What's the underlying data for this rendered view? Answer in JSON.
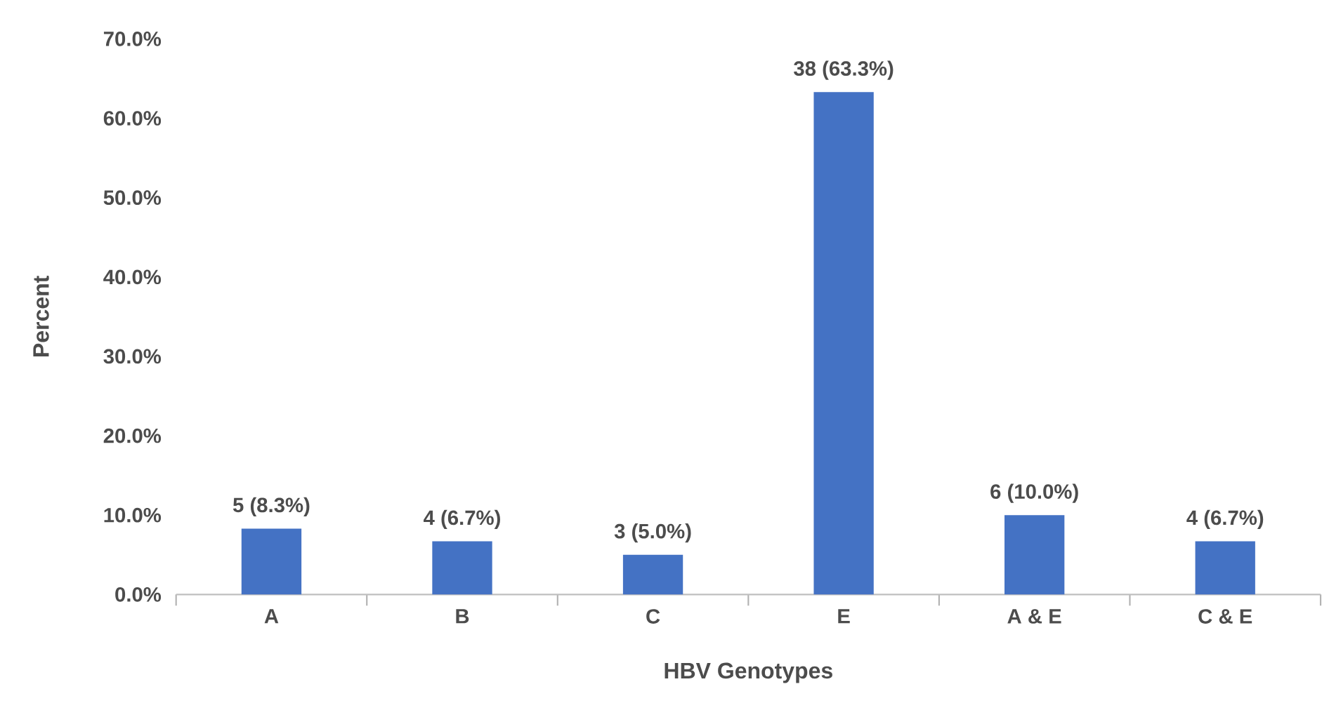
{
  "chart_data": {
    "type": "bar",
    "xlabel": "HBV Genotypes",
    "ylabel": "Percent",
    "categories": [
      "A",
      "B",
      "C",
      "E",
      "A & E",
      "C & E"
    ],
    "values": [
      8.3,
      6.7,
      5.0,
      63.3,
      10.0,
      6.7
    ],
    "value_labels": [
      "5 (8.3%)",
      "4 (6.7%)",
      "3 (5.0%)",
      "38 (63.3%)",
      "6 (10.0%)",
      "4 (6.7%)"
    ],
    "color": "#4472c4",
    "ylim": [
      0,
      70
    ],
    "yticks": [
      {
        "value": 0,
        "label": "0.0%"
      },
      {
        "value": 10,
        "label": "10.0%"
      },
      {
        "value": 20,
        "label": "20.0%"
      },
      {
        "value": 30,
        "label": "30.0%"
      },
      {
        "value": 40,
        "label": "40.0%"
      },
      {
        "value": 50,
        "label": "50.0%"
      },
      {
        "value": 60,
        "label": "60.0%"
      },
      {
        "value": 70,
        "label": "70.0%"
      }
    ]
  }
}
